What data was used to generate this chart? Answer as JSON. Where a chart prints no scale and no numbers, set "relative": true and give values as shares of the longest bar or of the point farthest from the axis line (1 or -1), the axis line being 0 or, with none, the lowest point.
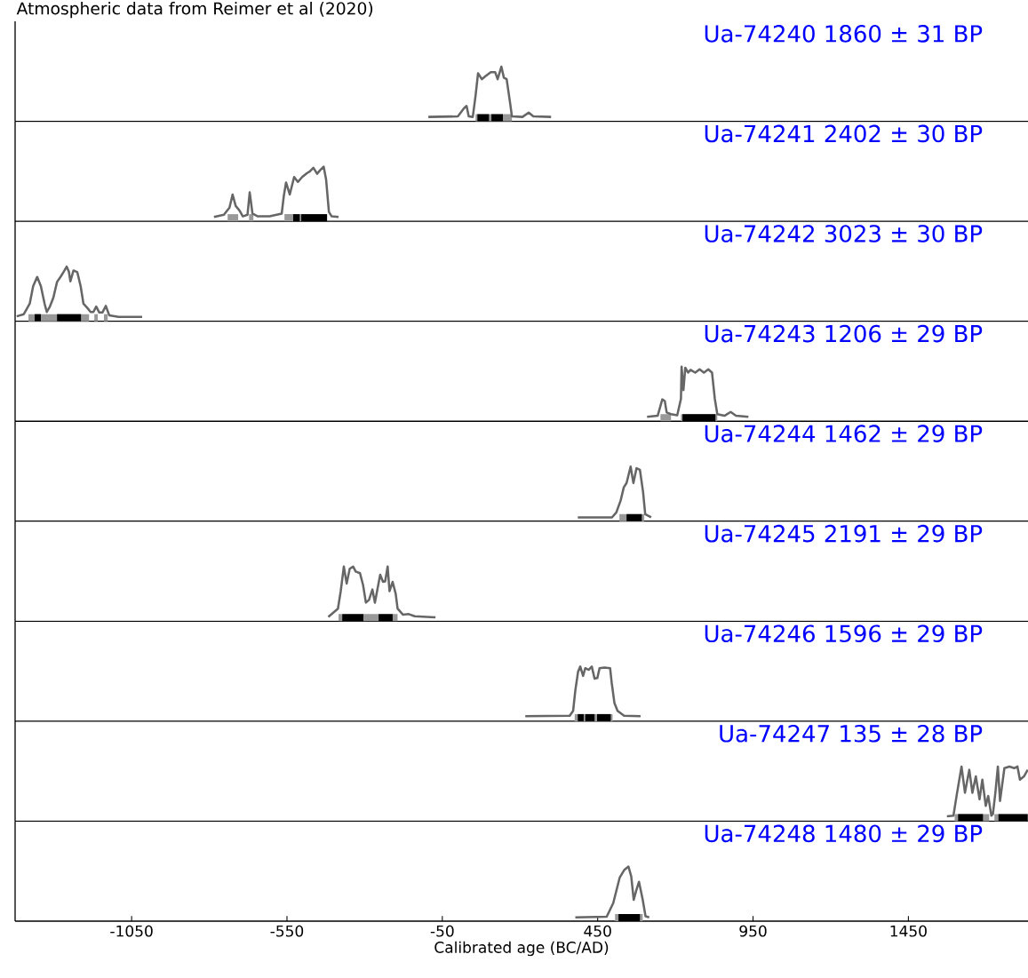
{
  "chart_data": [
    {
      "type": "line",
      "relative": true,
      "title": "Ua-74240 1860 ± 31 BP",
      "annotations": [
        "Atmospheric data from Reimer et al (2020)"
      ],
      "xlim": [
        -1425,
        1835
      ],
      "tick_labels": false,
      "series": [
        {
          "color": "#666666",
          "x": [
            -95,
            0,
            20,
            28,
            35,
            48,
            57,
            65,
            77,
            88,
            106,
            120,
            128,
            140,
            148,
            157,
            168,
            174,
            208,
            228,
            243,
            300
          ],
          "values": [
            0.08,
            0.09,
            0.24,
            0.28,
            0.09,
            0.08,
            0.47,
            0.88,
            0.77,
            0.82,
            0.9,
            0.9,
            0.77,
            1,
            0.8,
            0.77,
            0.34,
            0.09,
            0.08,
            0.16,
            0.09,
            0.08
          ]
        }
      ],
      "bands": [
        {
          "axis": "x",
          "from": 57,
          "to": 174,
          "color": "#999999"
        },
        {
          "axis": "x",
          "from": 63,
          "to": 100,
          "color": "#000000"
        },
        {
          "axis": "x",
          "from": 108,
          "to": 145,
          "color": "#000000"
        }
      ]
    },
    {
      "type": "line",
      "relative": true,
      "title": "Ua-74241 2402 ± 30 BP",
      "xlim": [
        -1425,
        1835
      ],
      "tick_labels": false,
      "series": [
        {
          "color": "#666666",
          "x": [
            -785,
            -753,
            -735,
            -725,
            -715,
            -703,
            -692,
            -677,
            -670,
            -661,
            -644,
            -606,
            -567,
            -560,
            -553,
            -541,
            -527,
            -515,
            -501,
            -486,
            -477,
            -465,
            -453,
            -444,
            -432,
            -424,
            -415,
            -406,
            -384
          ],
          "values": [
            0.08,
            0.12,
            0.25,
            0.49,
            0.28,
            0.2,
            0.09,
            0.12,
            0.53,
            0.14,
            0.09,
            0.09,
            0.14,
            0.47,
            0.71,
            0.49,
            0.81,
            0.72,
            0.81,
            0.88,
            0.91,
            0.98,
            0.87,
            0.93,
            1,
            0.76,
            0.17,
            0.09,
            0.08
          ]
        }
      ],
      "bands": [
        {
          "axis": "x",
          "from": -741,
          "to": -707,
          "color": "#999999"
        },
        {
          "axis": "x",
          "from": -672,
          "to": -658,
          "color": "#999999"
        },
        {
          "axis": "x",
          "from": -558,
          "to": -421,
          "color": "#999999"
        },
        {
          "axis": "x",
          "from": -530,
          "to": -509,
          "color": "#000000"
        },
        {
          "axis": "x",
          "from": -504,
          "to": -421,
          "color": "#000000"
        }
      ]
    },
    {
      "type": "line",
      "relative": true,
      "title": "Ua-74242 3023 ± 30 BP",
      "xlim": [
        -1425,
        1835
      ],
      "tick_labels": false,
      "series": [
        {
          "color": "#666666",
          "x": [
            -1420,
            -1397,
            -1378,
            -1367,
            -1354,
            -1342,
            -1330,
            -1323,
            -1313,
            -1302,
            -1290,
            -1278,
            -1268,
            -1259,
            -1252,
            -1247,
            -1237,
            -1225,
            -1214,
            -1205,
            -1192,
            -1182,
            -1173,
            -1164,
            -1154,
            -1144,
            -1133,
            -1122,
            -1092,
            -1016
          ],
          "values": [
            0.09,
            0.13,
            0.32,
            0.64,
            0.81,
            0.64,
            0.32,
            0.17,
            0.27,
            0.43,
            0.72,
            0.82,
            0.91,
            1,
            0.91,
            0.73,
            0.93,
            0.9,
            0.64,
            0.32,
            0.24,
            0.17,
            0.17,
            0.27,
            0.16,
            0.16,
            0.28,
            0.11,
            0.08,
            0.08
          ]
        }
      ],
      "bands": [
        {
          "axis": "x",
          "from": -1382,
          "to": -1187,
          "color": "#999999"
        },
        {
          "axis": "x",
          "from": -1362,
          "to": -1342,
          "color": "#000000"
        },
        {
          "axis": "x",
          "from": -1290,
          "to": -1213,
          "color": "#000000"
        },
        {
          "axis": "x",
          "from": -1170,
          "to": -1159,
          "color": "#999999"
        },
        {
          "axis": "x",
          "from": -1139,
          "to": -1127,
          "color": "#999999"
        }
      ]
    },
    {
      "type": "line",
      "relative": true,
      "title": "Ua-74243 1206 ± 29 BP",
      "xlim": [
        -1425,
        1835
      ],
      "tick_labels": false,
      "series": [
        {
          "color": "#666666",
          "x": [
            609,
            643,
            658,
            666,
            672,
            686,
            706,
            718,
            720,
            726,
            732,
            741,
            749,
            764,
            778,
            792,
            806,
            818,
            827,
            835,
            858,
            878,
            895,
            935
          ],
          "values": [
            0.08,
            0.1,
            0.4,
            0.37,
            0.16,
            0.13,
            0.11,
            0.41,
            1,
            0.57,
            0.98,
            0.89,
            0.94,
            0.89,
            0.95,
            0.89,
            0.95,
            0.89,
            0.41,
            0.13,
            0.1,
            0.17,
            0.1,
            0.08
          ]
        }
      ],
      "bands": [
        {
          "axis": "x",
          "from": 652,
          "to": 686,
          "color": "#999999"
        },
        {
          "axis": "x",
          "from": 718,
          "to": 835,
          "color": "#999999"
        },
        {
          "axis": "x",
          "from": 723,
          "to": 829,
          "color": "#000000"
        }
      ]
    },
    {
      "type": "line",
      "relative": true,
      "title": "Ua-74244 1462 ± 29 BP",
      "xlim": [
        -1425,
        1835
      ],
      "tick_labels": false,
      "series": [
        {
          "color": "#666666",
          "x": [
            386,
            496,
            510,
            524,
            534,
            543,
            556,
            565,
            575,
            586,
            596,
            603,
            622
          ],
          "values": [
            0.07,
            0.07,
            0.16,
            0.38,
            0.62,
            0.7,
            1,
            0.7,
            0.97,
            0.94,
            0.54,
            0.13,
            0.07
          ]
        }
      ],
      "bands": [
        {
          "axis": "x",
          "from": 520,
          "to": 600,
          "color": "#999999"
        },
        {
          "axis": "x",
          "from": 543,
          "to": 592,
          "color": "#000000"
        }
      ]
    },
    {
      "type": "line",
      "relative": true,
      "title": "Ua-74245 2191 ± 29 BP",
      "xlim": [
        -1425,
        1835
      ],
      "tick_labels": false,
      "series": [
        {
          "color": "#666666",
          "x": [
            -417,
            -386,
            -377,
            -367,
            -358,
            -348,
            -337,
            -329,
            -315,
            -305,
            -296,
            -286,
            -275,
            -267,
            -258,
            -250,
            -241,
            -234,
            -226,
            -220,
            -210,
            -200,
            -194,
            -177,
            -158,
            -139,
            -100,
            -72
          ],
          "values": [
            0.08,
            0.23,
            0.55,
            1,
            0.69,
            0.96,
            1,
            0.91,
            0.88,
            0.66,
            0.34,
            0.39,
            0.58,
            0.34,
            0.61,
            0.85,
            0.72,
            0.73,
            1,
            0.55,
            0.72,
            0.5,
            0.23,
            0.12,
            0.13,
            0.09,
            0.08,
            0.07
          ]
        }
      ],
      "bands": [
        {
          "axis": "x",
          "from": -384,
          "to": -194,
          "color": "#999999"
        },
        {
          "axis": "x",
          "from": -372,
          "to": -304,
          "color": "#000000"
        },
        {
          "axis": "x",
          "from": -255,
          "to": -210,
          "color": "#000000"
        }
      ]
    },
    {
      "type": "line",
      "relative": true,
      "title": "Ua-74246 1596 ± 29 BP",
      "xlim": [
        -1425,
        1835
      ],
      "tick_labels": false,
      "series": [
        {
          "color": "#666666",
          "x": [
            217,
            360,
            371,
            378,
            387,
            394,
            403,
            410,
            421,
            431,
            440,
            449,
            456,
            472,
            490,
            495,
            504,
            514,
            535,
            588
          ],
          "values": [
            0.09,
            0.1,
            0.19,
            0.56,
            0.91,
            1,
            0.83,
            0.97,
            0.94,
            1,
            0.78,
            0.79,
            0.97,
            0.98,
            0.97,
            0.71,
            0.33,
            0.19,
            0.1,
            0.09
          ]
        }
      ],
      "bands": [
        {
          "axis": "x",
          "from": 376,
          "to": 498,
          "color": "#999999"
        },
        {
          "axis": "x",
          "from": 386,
          "to": 405,
          "color": "#000000"
        },
        {
          "axis": "x",
          "from": 410,
          "to": 440,
          "color": "#000000"
        },
        {
          "axis": "x",
          "from": 448,
          "to": 492,
          "color": "#000000"
        }
      ]
    },
    {
      "type": "line",
      "relative": true,
      "title": "Ua-74247 135 ± 28 BP",
      "xlim": [
        -1425,
        1835
      ],
      "tick_labels": false,
      "series": [
        {
          "color": "#666666",
          "x": [
            1574,
            1595,
            1605,
            1621,
            1632,
            1646,
            1656,
            1667,
            1679,
            1688,
            1699,
            1707,
            1717,
            1722,
            1730,
            1738,
            1745,
            1759,
            1775,
            1791,
            1801,
            1809,
            1822,
            1834
          ],
          "values": [
            0.09,
            0.1,
            0.46,
            1,
            0.52,
            0.94,
            0.52,
            0.82,
            0.4,
            0.76,
            0.28,
            0.46,
            0.1,
            0.13,
            0.52,
            1,
            0.37,
            0.97,
            1,
            0.97,
            1,
            0.76,
            0.82,
            0.94
          ]
        }
      ],
      "bands": [
        {
          "axis": "x",
          "from": 1599,
          "to": 1710,
          "color": "#999999"
        },
        {
          "axis": "x",
          "from": 1610,
          "to": 1690,
          "color": "#000000"
        },
        {
          "axis": "x",
          "from": 1727,
          "to": 1834,
          "color": "#999999"
        },
        {
          "axis": "x",
          "from": 1740,
          "to": 1834,
          "color": "#000000"
        }
      ]
    },
    {
      "type": "line",
      "relative": true,
      "title": "Ua-74248 1480 ± 29 BP",
      "xlabel": "Calibrated age (BC/AD)",
      "xlim": [
        -1425,
        1835
      ],
      "xticks": [
        -1050,
        -550,
        -50,
        450,
        950,
        1450
      ],
      "tick_labels": "x",
      "series": [
        {
          "color": "#666666",
          "x": [
            378,
            479,
            500,
            521,
            536,
            549,
            558,
            566,
            574,
            583,
            595,
            604,
            616
          ],
          "values": [
            0.07,
            0.08,
            0.33,
            0.8,
            0.94,
            1,
            0.82,
            0.39,
            0.56,
            0.72,
            0.39,
            0.09,
            0.07
          ]
        }
      ],
      "bands": [
        {
          "axis": "x",
          "from": 506,
          "to": 595,
          "color": "#999999"
        },
        {
          "axis": "x",
          "from": 517,
          "to": 586,
          "color": "#000000"
        }
      ]
    }
  ]
}
